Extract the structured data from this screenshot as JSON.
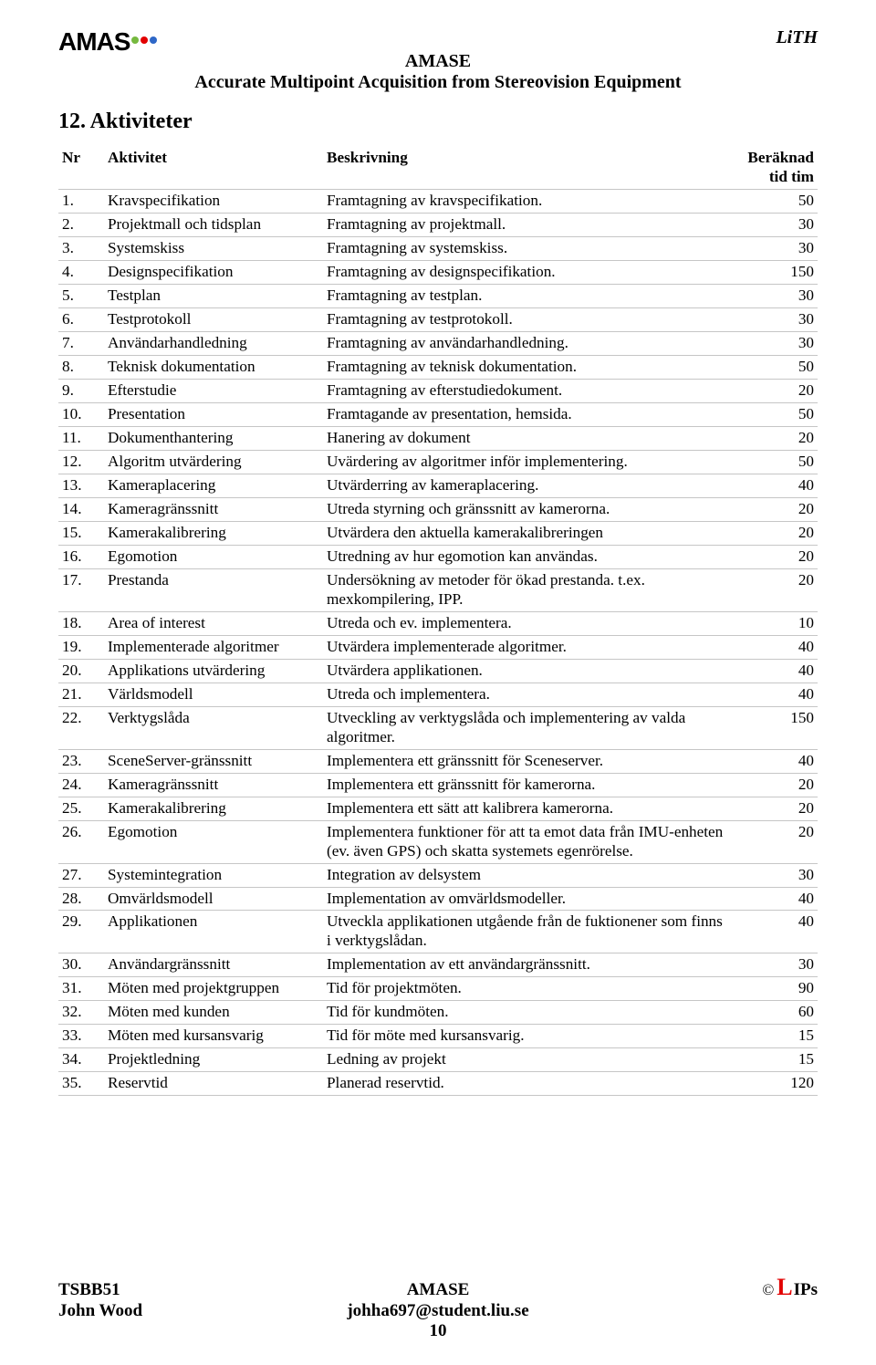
{
  "logo": {
    "text": "AMAS",
    "dot1": "#76b93f",
    "dot2": "#e20000",
    "dot3": "#2e67c7"
  },
  "lith": "LiTH",
  "project_title": "AMASE",
  "project_subtitle": "Accurate Multipoint Acquisition from Stereovision Equipment",
  "section_heading": "12. Aktiviteter",
  "table": {
    "head": {
      "nr": "Nr",
      "activity": "Aktivitet",
      "desc": "Beskrivning",
      "time": "Beräknad tid tim"
    },
    "rows": [
      {
        "nr": "1.",
        "act": "Kravspecifikation",
        "desc": "Framtagning av kravspecifikation.",
        "time": "50"
      },
      {
        "nr": "2.",
        "act": "Projektmall och tidsplan",
        "desc": "Framtagning av projektmall.",
        "time": "30"
      },
      {
        "nr": "3.",
        "act": "Systemskiss",
        "desc": "Framtagning av systemskiss.",
        "time": "30"
      },
      {
        "nr": "4.",
        "act": "Designspecifikation",
        "desc": "Framtagning av designspecifikation.",
        "time": "150"
      },
      {
        "nr": "5.",
        "act": "Testplan",
        "desc": "Framtagning av testplan.",
        "time": "30"
      },
      {
        "nr": "6.",
        "act": "Testprotokoll",
        "desc": "Framtagning av testprotokoll.",
        "time": "30"
      },
      {
        "nr": "7.",
        "act": "Användarhandledning",
        "desc": "Framtagning av användarhandledning.",
        "time": "30"
      },
      {
        "nr": "8.",
        "act": "Teknisk dokumentation",
        "desc": "Framtagning av teknisk dokumentation.",
        "time": "50"
      },
      {
        "nr": "9.",
        "act": "Efterstudie",
        "desc": "Framtagning av efterstudiedokument.",
        "time": "20"
      },
      {
        "nr": "10.",
        "act": "Presentation",
        "desc": "Framtagande av presentation, hemsida.",
        "time": "50"
      },
      {
        "nr": "11.",
        "act": "Dokumenthantering",
        "desc": "Hanering av dokument",
        "time": "20"
      },
      {
        "nr": "12.",
        "act": "Algoritm utvärdering",
        "desc": "Uvärdering av algoritmer inför implementering.",
        "time": "50"
      },
      {
        "nr": "13.",
        "act": "Kameraplacering",
        "desc": "Utvärderring av kameraplacering.",
        "time": "40"
      },
      {
        "nr": "14.",
        "act": "Kameragränssnitt",
        "desc": "Utreda styrning och gränssnitt av kamerorna.",
        "time": "20"
      },
      {
        "nr": "15.",
        "act": "Kamerakalibrering",
        "desc": "Utvärdera den aktuella kamerakalibreringen",
        "time": "20"
      },
      {
        "nr": "16.",
        "act": "Egomotion",
        "desc": "Utredning av hur egomotion kan användas.",
        "time": "20"
      },
      {
        "nr": "17.",
        "act": "Prestanda",
        "desc": "Undersökning av metoder för ökad prestanda. t.ex. mexkompilering, IPP.",
        "time": "20"
      },
      {
        "nr": "18.",
        "act": "Area of interest",
        "desc": "Utreda och ev. implementera.",
        "time": "10"
      },
      {
        "nr": "19.",
        "act": "Implementerade algoritmer",
        "desc": "Utvärdera implementerade algoritmer.",
        "time": "40"
      },
      {
        "nr": "20.",
        "act": "Applikations utvärdering",
        "desc": "Utvärdera applikationen.",
        "time": "40"
      },
      {
        "nr": "21.",
        "act": "Världsmodell",
        "desc": "Utreda och implementera.",
        "time": "40"
      },
      {
        "nr": "22.",
        "act": "Verktygslåda",
        "desc": "Utveckling av verktygslåda och implementering av valda algoritmer.",
        "time": "150"
      },
      {
        "nr": "23.",
        "act": "SceneServer-gränssnitt",
        "desc": "Implementera ett gränssnitt för Sceneserver.",
        "time": "40"
      },
      {
        "nr": "24.",
        "act": "Kameragränssnitt",
        "desc": "Implementera ett gränssnitt för kamerorna.",
        "time": "20"
      },
      {
        "nr": "25.",
        "act": "Kamerakalibrering",
        "desc": "Implementera ett sätt att kalibrera kamerorna.",
        "time": "20"
      },
      {
        "nr": "26.",
        "act": "Egomotion",
        "desc": "Implementera funktioner för att ta emot data från IMU-enheten (ev. även GPS) och skatta systemets egenrörelse.",
        "time": "20"
      },
      {
        "nr": "27.",
        "act": "Systemintegration",
        "desc": "Integration av delsystem",
        "time": "30"
      },
      {
        "nr": "28.",
        "act": "Omvärldsmodell",
        "desc": "Implementation av omvärldsmodeller.",
        "time": "40"
      },
      {
        "nr": "29.",
        "act": "Applikationen",
        "desc": "Utveckla applikationen utgående från de fuktionener som finns i verktygslådan.",
        "time": "40"
      },
      {
        "nr": "30.",
        "act": "Användargränssnitt",
        "desc": "Implementation av ett användargränssnitt.",
        "time": "30"
      },
      {
        "nr": "31.",
        "act": "Möten med projektgruppen",
        "desc": "Tid för projektmöten.",
        "time": "90"
      },
      {
        "nr": "32.",
        "act": "Möten med kunden",
        "desc": "Tid för kundmöten.",
        "time": "60"
      },
      {
        "nr": "33.",
        "act": "Möten med kursansvarig",
        "desc": "Tid för möte med kursansvarig.",
        "time": "15"
      },
      {
        "nr": "34.",
        "act": "Projektledning",
        "desc": "Ledning av projekt",
        "time": "15"
      },
      {
        "nr": "35.",
        "act": "Reservtid",
        "desc": "Planerad reservtid.",
        "time": "120"
      }
    ]
  },
  "footer": {
    "left1": "TSBB51",
    "left2": "John Wood",
    "center1": "AMASE",
    "center2": "johha697@student.liu.se",
    "right_label": "IPs",
    "page_number": "10"
  }
}
